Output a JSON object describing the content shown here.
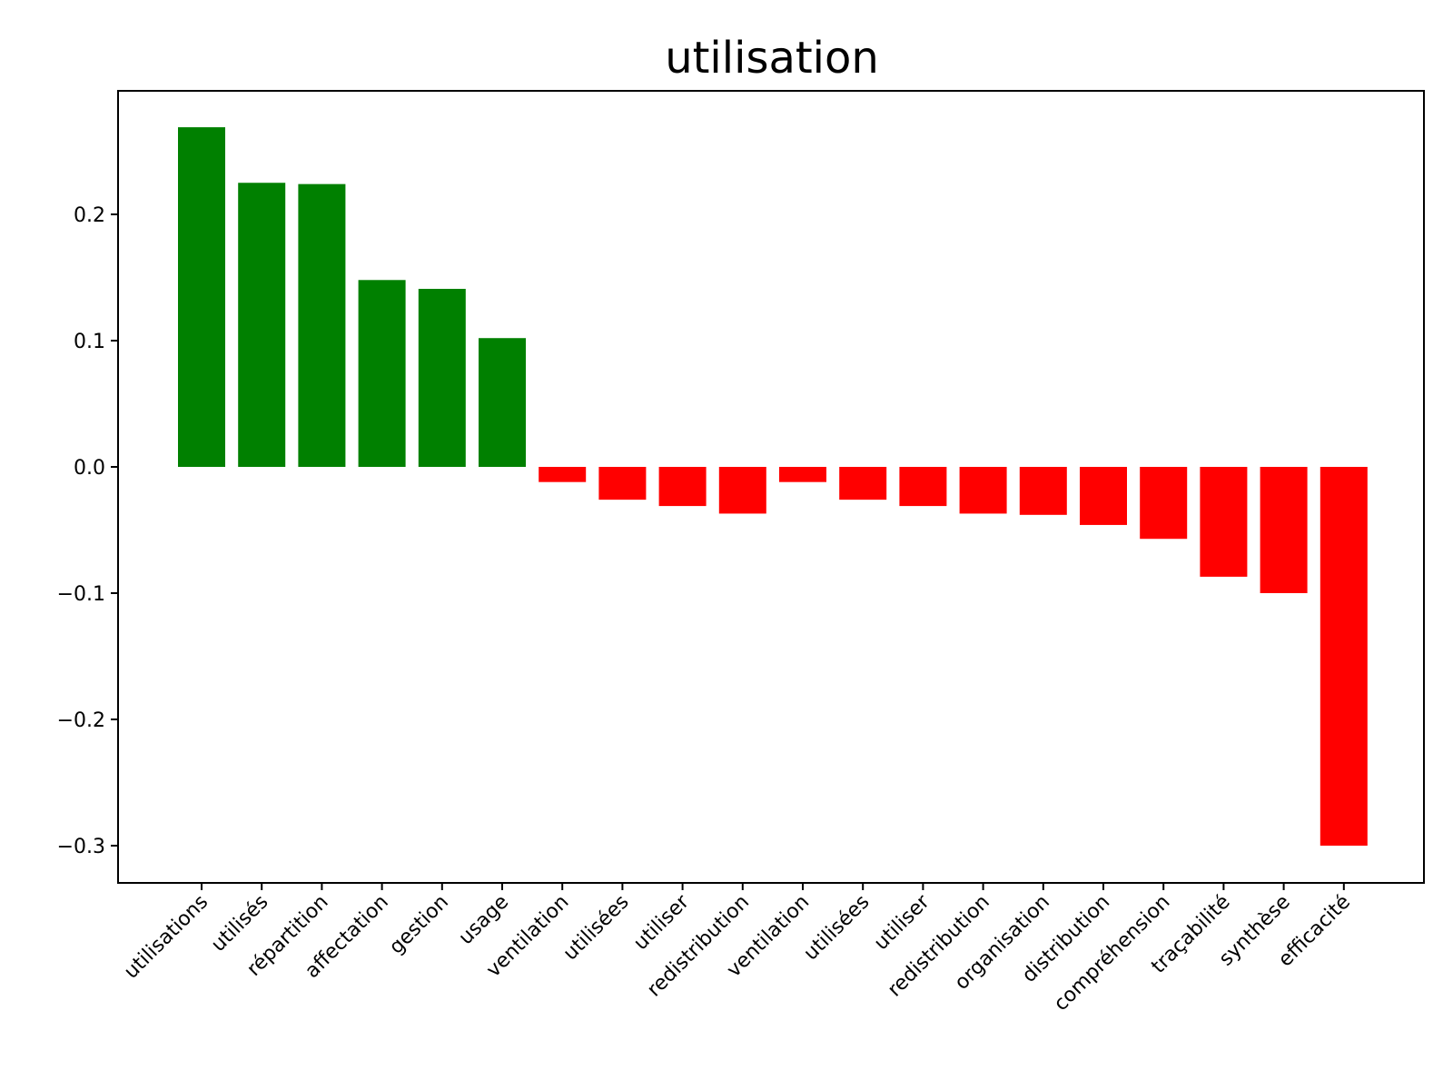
{
  "chart_data": {
    "type": "bar",
    "title": "utilisation",
    "xlabel": "",
    "ylabel": "",
    "categories": [
      "utilisations",
      "utilisés",
      "répartition",
      "affectation",
      "gestion",
      "usage",
      "ventilation",
      "utilisées",
      "utiliser",
      "redistribution",
      "ventilation",
      "utilisées",
      "utiliser",
      "redistribution",
      "organisation",
      "distribution",
      "compréhension",
      "traçabilité",
      "synthèse",
      "efficacité"
    ],
    "values": [
      0.269,
      0.225,
      0.224,
      0.148,
      0.141,
      0.102,
      -0.012,
      -0.026,
      -0.031,
      -0.037,
      -0.012,
      -0.026,
      -0.031,
      -0.037,
      -0.038,
      -0.046,
      -0.057,
      -0.087,
      -0.1,
      -0.3
    ],
    "ylim": [
      -0.3,
      0.3
    ],
    "yticks": [
      0.2,
      0.1,
      0.0,
      -0.1,
      -0.2,
      -0.3
    ],
    "ytick_labels": [
      "0.2",
      "0.1",
      "0.0",
      "−0.1",
      "−0.2",
      "−0.3"
    ],
    "colors": {
      "positive": "#008000",
      "negative": "#ff0000",
      "axes": "#000000"
    },
    "grid": false,
    "legend": "none"
  }
}
